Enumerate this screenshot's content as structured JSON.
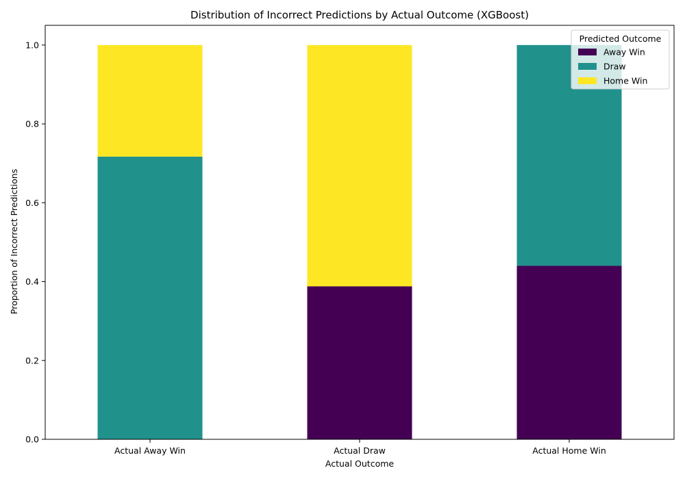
{
  "chart_data": {
    "type": "bar",
    "stacked": true,
    "title": "Distribution of Incorrect Predictions by Actual Outcome (XGBoost)",
    "xlabel": "Actual Outcome",
    "ylabel": "Proportion of Incorrect Predictions",
    "ylim": [
      0,
      1.05
    ],
    "yticks": [
      "0.0",
      "0.2",
      "0.4",
      "0.6",
      "0.8",
      "1.0"
    ],
    "categories": [
      "Actual Away Win",
      "Actual Draw",
      "Actual Home Win"
    ],
    "series": [
      {
        "name": "Away Win",
        "color": "#440154",
        "values": [
          0.0,
          0.388,
          0.44
        ]
      },
      {
        "name": "Draw",
        "color": "#21918c",
        "values": [
          0.717,
          0.0,
          0.56
        ]
      },
      {
        "name": "Home Win",
        "color": "#fde725",
        "values": [
          0.283,
          0.612,
          0.0
        ]
      }
    ],
    "legend": {
      "title": "Predicted Outcome",
      "position": "top-right"
    },
    "grid": false
  }
}
